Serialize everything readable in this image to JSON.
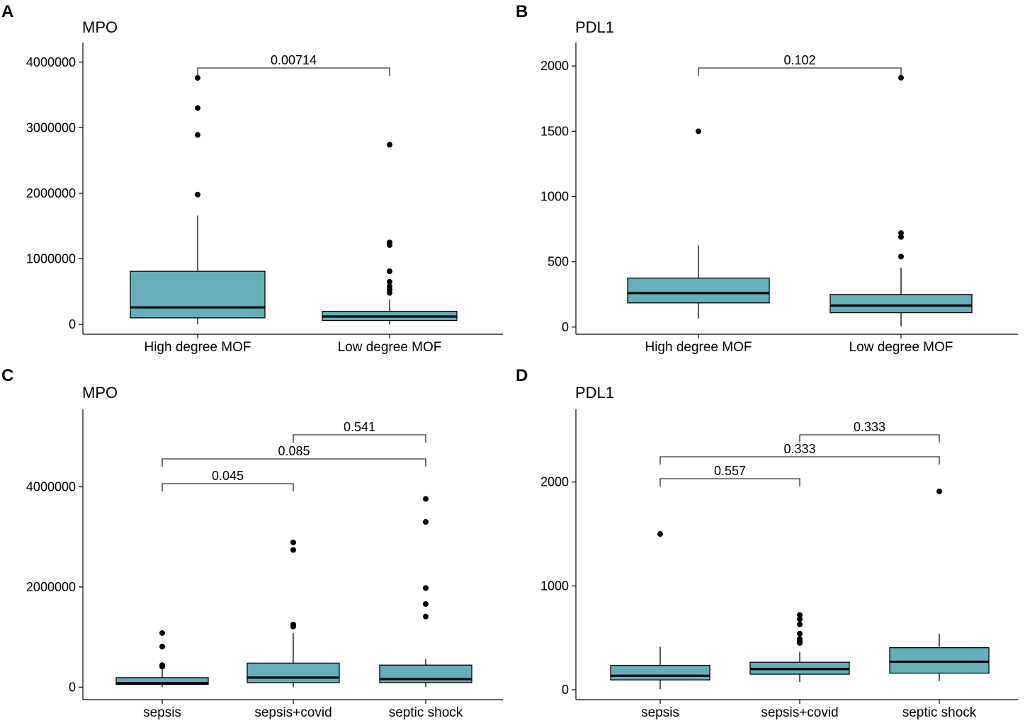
{
  "colors": {
    "box_fill": "#65afbb",
    "stroke": "#000000",
    "background": "#ffffff"
  },
  "chart_data": [
    {
      "panel": "A",
      "type": "box",
      "title": "MPO",
      "xlabel": "",
      "ylabel": "",
      "ylim": [
        -150000,
        4300000
      ],
      "yticks": [
        0,
        1000000,
        2000000,
        3000000,
        4000000
      ],
      "ytick_labels": [
        "0",
        "1000000",
        "2000000",
        "3000000",
        "4000000"
      ],
      "categories": [
        "High degree MOF",
        "Low degree MOF"
      ],
      "boxes": [
        {
          "q1": 100000,
          "median": 260000,
          "q3": 810000,
          "whisker_low": 0,
          "whisker_high": 1660000,
          "outliers": [
            1980000,
            2890000,
            3300000,
            3760000
          ]
        },
        {
          "q1": 60000,
          "median": 120000,
          "q3": 200000,
          "whisker_low": 0,
          "whisker_high": 380000,
          "outliers": [
            480000,
            530000,
            580000,
            650000,
            810000,
            1210000,
            1250000,
            2740000
          ]
        }
      ],
      "comparisons": [
        {
          "from": 0,
          "to": 1,
          "label": "0.00714"
        }
      ]
    },
    {
      "panel": "B",
      "type": "box",
      "title": "PDL1",
      "xlabel": "",
      "ylabel": "",
      "ylim": [
        -55,
        2180
      ],
      "yticks": [
        0,
        500,
        1000,
        1500,
        2000
      ],
      "ytick_labels": [
        "0",
        "500",
        "1000",
        "1500",
        "2000"
      ],
      "categories": [
        "High degree MOF",
        "Low degree MOF"
      ],
      "boxes": [
        {
          "q1": 185,
          "median": 260,
          "q3": 375,
          "whisker_low": 65,
          "whisker_high": 625,
          "outliers": [
            1500
          ]
        },
        {
          "q1": 110,
          "median": 165,
          "q3": 250,
          "whisker_low": 5,
          "whisker_high": 455,
          "outliers": [
            540,
            690,
            720,
            1910
          ]
        }
      ],
      "comparisons": [
        {
          "from": 0,
          "to": 1,
          "label": "0.102"
        }
      ]
    },
    {
      "panel": "C",
      "type": "box",
      "title": "MPO",
      "xlabel": "",
      "ylabel": "",
      "ylim": [
        -250000,
        5550000
      ],
      "yticks": [
        0,
        2000000,
        4000000
      ],
      "ytick_labels": [
        "0",
        "2000000",
        "4000000"
      ],
      "categories": [
        "sepsis",
        "sepsis+covid",
        "septic shock"
      ],
      "boxes": [
        {
          "q1": 55000,
          "median": 80000,
          "q3": 190000,
          "whisker_low": 0,
          "whisker_high": 350000,
          "outliers": [
            410000,
            440000,
            810000,
            1080000
          ]
        },
        {
          "q1": 90000,
          "median": 190000,
          "q3": 480000,
          "whisker_low": 0,
          "whisker_high": 1080000,
          "outliers": [
            1210000,
            1250000,
            2740000,
            2890000
          ]
        },
        {
          "q1": 90000,
          "median": 160000,
          "q3": 440000,
          "whisker_low": 0,
          "whisker_high": 560000,
          "outliers": [
            1410000,
            1660000,
            1980000,
            3300000,
            3760000
          ]
        }
      ],
      "comparisons": [
        {
          "from": 0,
          "to": 1,
          "label": "0.045"
        },
        {
          "from": 0,
          "to": 2,
          "label": "0.085"
        },
        {
          "from": 1,
          "to": 2,
          "label": "0.541"
        }
      ]
    },
    {
      "panel": "D",
      "type": "box",
      "title": "PDL1",
      "xlabel": "",
      "ylabel": "",
      "ylim": [
        -95,
        2700
      ],
      "yticks": [
        0,
        1000,
        2000
      ],
      "ytick_labels": [
        "0",
        "1000",
        "2000"
      ],
      "categories": [
        "sepsis",
        "sepsis+covid",
        "septic shock"
      ],
      "boxes": [
        {
          "q1": 95,
          "median": 135,
          "q3": 235,
          "whisker_low": 5,
          "whisker_high": 415,
          "outliers": [
            1500
          ]
        },
        {
          "q1": 150,
          "median": 200,
          "q3": 265,
          "whisker_low": 75,
          "whisker_high": 365,
          "outliers": [
            450,
            470,
            490,
            540,
            630,
            680,
            720
          ]
        },
        {
          "q1": 160,
          "median": 270,
          "q3": 405,
          "whisker_low": 85,
          "whisker_high": 540,
          "outliers": [
            1910
          ]
        }
      ],
      "comparisons": [
        {
          "from": 0,
          "to": 1,
          "label": "0.557"
        },
        {
          "from": 0,
          "to": 2,
          "label": "0.333"
        },
        {
          "from": 1,
          "to": 2,
          "label": "0.333"
        }
      ]
    }
  ]
}
